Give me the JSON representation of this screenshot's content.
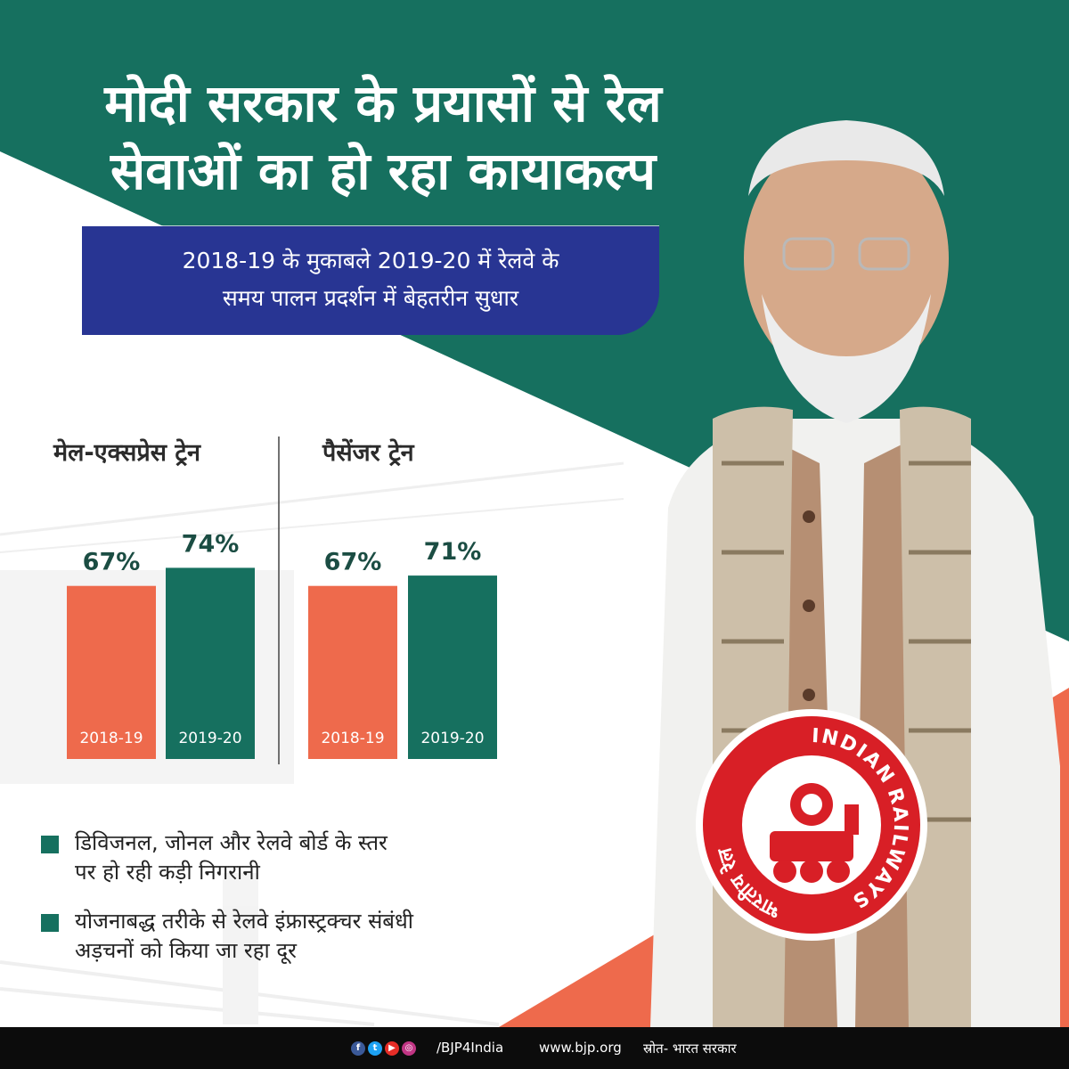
{
  "header": {
    "title_line1": "मोदी सरकार के प्रयासों से रेल",
    "title_line2": "सेवाओं का हो रहा कायाकल्प",
    "subtitle_line1": "2018-19 के मुकाबले 2019-20 में रेलवे के",
    "subtitle_line2": "समय पालन प्रदर्शन में बेहतरीन सुधार"
  },
  "colors": {
    "green": "#16705f",
    "orange": "#ee6a4c",
    "blue": "#283593"
  },
  "chart_data": [
    {
      "type": "bar",
      "title": "मेल-एक्सप्रेस ट्रेन",
      "categories": [
        "2018-19",
        "2019-20"
      ],
      "values": [
        67,
        74
      ],
      "value_labels": [
        "67%",
        "74%"
      ],
      "unit": "%",
      "ylim": [
        0,
        100
      ]
    },
    {
      "type": "bar",
      "title": "पैसेंजर ट्रेन",
      "categories": [
        "2018-19",
        "2019-20"
      ],
      "values": [
        67,
        71
      ],
      "value_labels": [
        "67%",
        "71%"
      ],
      "unit": "%",
      "ylim": [
        0,
        100
      ]
    }
  ],
  "bullets": [
    {
      "line1": "डिविजनल, जोनल और रेलवे बोर्ड के स्तर",
      "line2": "पर हो रही कड़ी निगरानी"
    },
    {
      "line1": "योजनाबद्ध तरीके से रेलवे इंफ्रास्ट्रक्चर संबंधी",
      "line2": "अड़चनों को किया जा रहा दूर"
    }
  ],
  "logo": {
    "top_text": "INDIAN",
    "right_text": "RAILWAYS",
    "left_text": "भारतीय रेल"
  },
  "footer": {
    "social_icons": [
      "facebook-icon",
      "twitter-icon",
      "youtube-icon",
      "instagram-icon"
    ],
    "handle": "/BJP4India",
    "website": "www.bjp.org",
    "source": "स्रोत- भारत सरकार"
  }
}
